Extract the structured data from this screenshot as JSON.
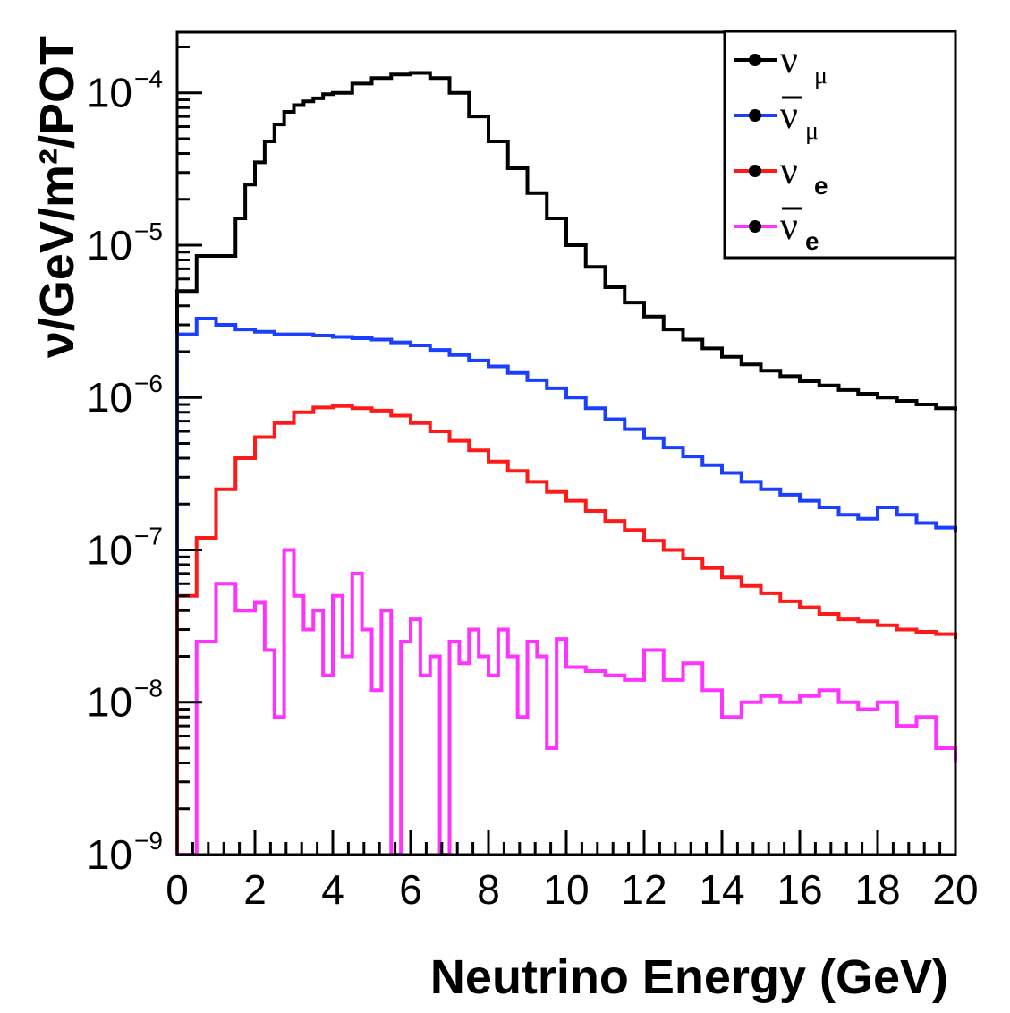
{
  "chart_data": {
    "type": "line",
    "xlabel": "Neutrino Energy (GeV)",
    "ylabel": "ν/GeV/m²/POT",
    "xlim": [
      0,
      20
    ],
    "ylim": [
      1e-09,
      0.00025
    ],
    "yscale": "log",
    "grid": false,
    "legend_position": "top-right",
    "x_ticks": [
      "0",
      "2",
      "4",
      "6",
      "8",
      "10",
      "12",
      "14",
      "16",
      "18",
      "20"
    ],
    "y_ticks": [
      {
        "base": "10",
        "exp": "−9"
      },
      {
        "base": "10",
        "exp": "−8"
      },
      {
        "base": "10",
        "exp": "−7"
      },
      {
        "base": "10",
        "exp": "−6"
      },
      {
        "base": "10",
        "exp": "−5"
      },
      {
        "base": "10",
        "exp": "−4"
      }
    ],
    "series": [
      {
        "name": "ν μ",
        "color": "#000000",
        "x": [
          0,
          0.5,
          1.0,
          1.5,
          1.75,
          2.0,
          2.25,
          2.5,
          2.75,
          3.0,
          3.25,
          3.5,
          3.75,
          4.0,
          4.5,
          5.0,
          5.5,
          6.0,
          6.5,
          7.0,
          7.5,
          8.0,
          8.5,
          9.0,
          9.5,
          10.0,
          10.5,
          11.0,
          11.5,
          12.0,
          12.5,
          13.0,
          13.5,
          14.0,
          14.5,
          15.0,
          15.5,
          16.0,
          16.5,
          17.0,
          17.5,
          18.0,
          18.5,
          19.0,
          19.5,
          20.0
        ],
        "y": [
          5e-06,
          8.5e-06,
          8.5e-06,
          1.5e-05,
          2.5e-05,
          3.5e-05,
          4.8e-05,
          6.2e-05,
          7.5e-05,
          8.3e-05,
          8.8e-05,
          9.2e-05,
          9.8e-05,
          0.0001,
          0.000115,
          0.000125,
          0.000132,
          0.000135,
          0.000125,
          0.0001,
          7e-05,
          4.8e-05,
          3.2e-05,
          2.2e-05,
          1.5e-05,
          1e-05,
          7.2e-06,
          5.3e-06,
          4.2e-06,
          3.4e-06,
          2.8e-06,
          2.4e-06,
          2.1e-06,
          1.85e-06,
          1.65e-06,
          1.5e-06,
          1.38e-06,
          1.28e-06,
          1.2e-06,
          1.12e-06,
          1.06e-06,
          1e-06,
          9.5e-07,
          9e-07,
          8.5e-07,
          8.2e-07
        ]
      },
      {
        "name": "ν̄ μ",
        "color": "#1a3fff",
        "x": [
          0,
          0.5,
          1.0,
          1.5,
          2.0,
          2.5,
          3.0,
          3.5,
          4.0,
          4.5,
          5.0,
          5.5,
          6.0,
          6.5,
          7.0,
          7.5,
          8.0,
          8.5,
          9.0,
          9.5,
          10.0,
          10.5,
          11.0,
          11.5,
          12.0,
          12.5,
          13.0,
          13.5,
          14.0,
          14.5,
          15.0,
          15.5,
          16.0,
          16.5,
          17.0,
          17.5,
          18.0,
          18.5,
          19.0,
          19.5,
          20.0
        ],
        "y": [
          2.6e-06,
          3.3e-06,
          3e-06,
          2.8e-06,
          2.7e-06,
          2.6e-06,
          2.6e-06,
          2.55e-06,
          2.5e-06,
          2.45e-06,
          2.4e-06,
          2.3e-06,
          2.2e-06,
          2.05e-06,
          1.9e-06,
          1.75e-06,
          1.6e-06,
          1.45e-06,
          1.3e-06,
          1.15e-06,
          1e-06,
          8.5e-07,
          7.2e-07,
          6.2e-07,
          5.4e-07,
          4.7e-07,
          4.1e-07,
          3.6e-07,
          3.2e-07,
          2.8e-07,
          2.5e-07,
          2.3e-07,
          2.1e-07,
          1.9e-07,
          1.7e-07,
          1.6e-07,
          1.9e-07,
          1.7e-07,
          1.5e-07,
          1.4e-07,
          1.3e-07
        ]
      },
      {
        "name": "ν e",
        "color": "#ff1a1a",
        "x": [
          0,
          0.25,
          0.5,
          1.0,
          1.5,
          2.0,
          2.5,
          3.0,
          3.5,
          4.0,
          4.5,
          5.0,
          5.5,
          6.0,
          6.5,
          7.0,
          7.5,
          8.0,
          8.5,
          9.0,
          9.5,
          10.0,
          10.5,
          11.0,
          11.5,
          12.0,
          12.5,
          13.0,
          13.5,
          14.0,
          14.5,
          15.0,
          15.5,
          16.0,
          16.5,
          17.0,
          17.5,
          18.0,
          18.5,
          19.0,
          19.5,
          20.0
        ],
        "y": [
          5e-08,
          5e-08,
          1.2e-07,
          2.5e-07,
          4e-07,
          5.5e-07,
          6.8e-07,
          8e-07,
          8.6e-07,
          8.8e-07,
          8.5e-07,
          8.2e-07,
          7.6e-07,
          6.8e-07,
          6e-07,
          5.2e-07,
          4.5e-07,
          3.8e-07,
          3.3e-07,
          2.8e-07,
          2.4e-07,
          2.1e-07,
          1.8e-07,
          1.55e-07,
          1.35e-07,
          1.15e-07,
          1e-07,
          8.8e-08,
          7.6e-08,
          6.6e-08,
          5.8e-08,
          5.2e-08,
          4.6e-08,
          4.2e-08,
          3.8e-08,
          3.5e-08,
          3.4e-08,
          3.2e-08,
          3e-08,
          2.9e-08,
          2.8e-08,
          2.6e-08
        ]
      },
      {
        "name": "ν̄ e",
        "color": "#ff33ff",
        "x": [
          0,
          0.25,
          0.5,
          1.0,
          1.5,
          2.0,
          2.25,
          2.5,
          2.75,
          3.0,
          3.25,
          3.5,
          3.75,
          4.0,
          4.25,
          4.5,
          4.75,
          5.0,
          5.25,
          5.5,
          5.75,
          6.0,
          6.25,
          6.5,
          6.75,
          7.0,
          7.25,
          7.5,
          7.75,
          8.0,
          8.25,
          8.5,
          8.75,
          9.0,
          9.25,
          9.5,
          9.75,
          10.0,
          10.5,
          11.0,
          11.5,
          12.0,
          12.5,
          13.0,
          13.5,
          14.0,
          14.5,
          15.0,
          15.5,
          16.0,
          16.5,
          17.0,
          17.5,
          18.0,
          18.5,
          19.0,
          19.5,
          20.0
        ],
        "y": [
          1e-09,
          1e-09,
          2.5e-08,
          6e-08,
          4e-08,
          4.5e-08,
          2.2e-08,
          8e-09,
          1e-07,
          5e-08,
          3e-08,
          4e-08,
          1.5e-08,
          5e-08,
          2e-08,
          7e-08,
          3e-08,
          1.2e-08,
          4e-08,
          1e-09,
          2.5e-08,
          3.5e-08,
          1.5e-08,
          2e-08,
          1e-09,
          2.5e-08,
          1.8e-08,
          3e-08,
          2e-08,
          1.5e-08,
          3e-08,
          2e-08,
          8e-09,
          2.5e-08,
          2e-08,
          5e-09,
          2.6e-08,
          1.7e-08,
          1.6e-08,
          1.5e-08,
          1.4e-08,
          2.2e-08,
          1.4e-08,
          1.8e-08,
          1.2e-08,
          8e-09,
          1e-08,
          1.1e-08,
          1e-08,
          1.1e-08,
          1.2e-08,
          1e-08,
          9e-09,
          1e-08,
          7e-09,
          8e-09,
          5e-09,
          4e-09
        ]
      }
    ]
  }
}
